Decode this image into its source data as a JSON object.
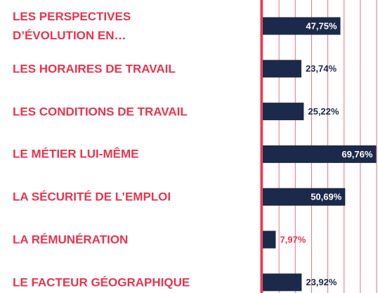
{
  "chart_data": {
    "type": "barh",
    "categories": [
      "LES PERSPECTIVES\nD’ÉVOLUTION EN…",
      "LES HORAIRES DE TRAVAIL",
      "LES CONDITIONS DE TRAVAIL",
      "LE MÉTIER LUI-MÊME",
      "LA SÉCURITÉ DE L’EMPLOI",
      "LA  RÉMUNÉRATION",
      "LE FACTEUR GÉOGRAPHIQUE"
    ],
    "values": [
      47.75,
      23.74,
      25.22,
      69.76,
      50.69,
      7.97,
      23.92
    ],
    "value_labels": [
      "47,75%",
      "23,74%",
      "25,22%",
      "69,76%",
      "50,69%",
      "7,97%",
      "23,92%"
    ],
    "value_label_colors": [
      "#ffffff",
      "#1b2a4a",
      "#1b2a4a",
      "#ffffff",
      "#ffffff",
      "#e8344e",
      "#1b2a4a"
    ],
    "color": "#1b2a4a",
    "category_color": "#e8344e",
    "axis_color": "#e8344e",
    "xlim": [
      0,
      70
    ],
    "xticks": [
      0,
      10,
      20,
      30,
      40,
      50,
      60,
      70
    ],
    "grid": true
  }
}
